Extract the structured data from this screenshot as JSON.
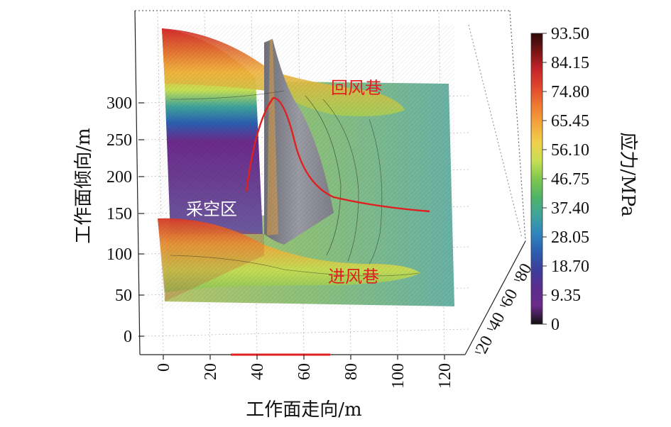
{
  "chart_data": {
    "type": "surface",
    "xlabel": "工作面走向/m",
    "ylabel": "工作面倾向/m",
    "x_ticks": [
      "0",
      "20",
      "40",
      "60",
      "80",
      "100",
      "120"
    ],
    "y_ticks": [
      "0",
      "50",
      "100",
      "150",
      "200",
      "250",
      "300"
    ],
    "z_ticks": [
      "20",
      "40",
      "60",
      "80"
    ],
    "colorbar": {
      "label": "应力/MPa",
      "ticks": [
        "93.50",
        "84.15",
        "74.80",
        "65.45",
        "56.10",
        "46.75",
        "37.40",
        "28.05",
        "18.70",
        "9.35",
        "0"
      ],
      "range": [
        0,
        93.5
      ],
      "colors": [
        "#2b0a0a",
        "#7a1414",
        "#c7242a",
        "#e2492d",
        "#ef7b31",
        "#f4a73d",
        "#f0d04a",
        "#c7df53",
        "#7fc84e",
        "#4fb567",
        "#3ea49a",
        "#2f86c0",
        "#2c5fb0",
        "#3c3d9c",
        "#5a2d8e",
        "#6b2a8a",
        "#111111"
      ]
    },
    "annotations": {
      "return_airway": "回风巷",
      "intake_airway": "进风巷",
      "goaf": "采空区"
    },
    "highlight_color": "#e02020"
  }
}
